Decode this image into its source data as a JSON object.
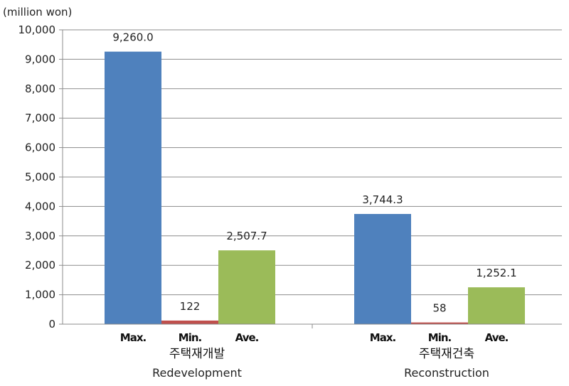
{
  "chart_data": {
    "type": "bar",
    "unit_label": "(million won)",
    "ylim": [
      0,
      10000
    ],
    "yticks": [
      0,
      1000,
      2000,
      3000,
      4000,
      5000,
      6000,
      7000,
      8000,
      9000,
      10000
    ],
    "ytick_labels": [
      "0",
      "1,000",
      "2,000",
      "3,000",
      "4,000",
      "5,000",
      "6,000",
      "7,000",
      "8,000",
      "9,000",
      "10,000"
    ],
    "grid": true,
    "groups": [
      {
        "label_ko": "주택재개발",
        "label_en": "Redevelopment",
        "bars": [
          {
            "label": "Max.",
            "value": 9260.0,
            "value_label": "9,260.0",
            "color": "#4f81bd"
          },
          {
            "label": "Min.",
            "value": 122,
            "value_label": "122",
            "color": "#c0504d"
          },
          {
            "label": "Ave.",
            "value": 2507.7,
            "value_label": "2,507.7",
            "color": "#9bbb59"
          }
        ]
      },
      {
        "label_ko": "주택재건축",
        "label_en": "Reconstruction",
        "bars": [
          {
            "label": "Max.",
            "value": 3744.3,
            "value_label": "3,744.3",
            "color": "#4f81bd"
          },
          {
            "label": "Min.",
            "value": 58,
            "value_label": "58",
            "color": "#c0504d"
          },
          {
            "label": "Ave.",
            "value": 1252.1,
            "value_label": "1,252.1",
            "color": "#9bbb59"
          }
        ]
      }
    ]
  }
}
